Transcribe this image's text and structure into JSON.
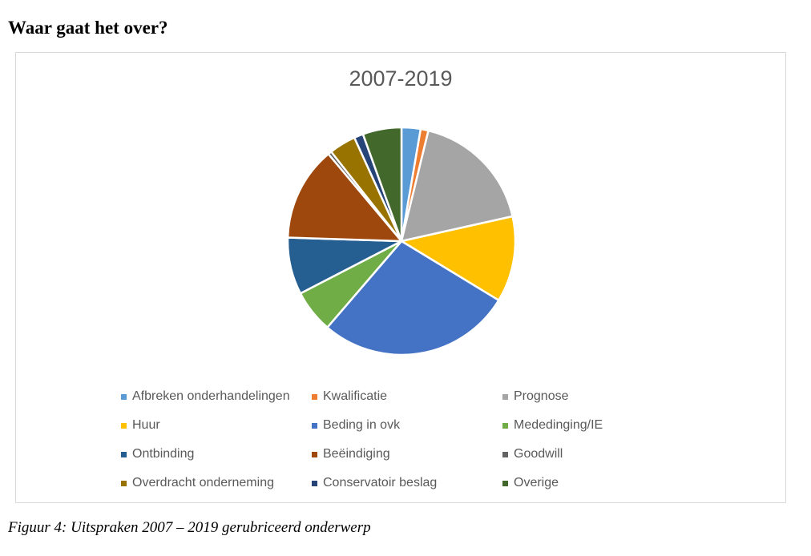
{
  "heading": "Waar gaat het over?",
  "caption": "Figuur 4: Uitspraken 2007 – 2019 gerubriceerd onderwerp",
  "chart_data": {
    "type": "pie",
    "title": "2007-2019",
    "legend_position": "bottom",
    "slices": [
      {
        "label": "Afbreken onderhandelingen",
        "value": 2.7,
        "color": "#5b9bd5"
      },
      {
        "label": "Kwalificatie",
        "value": 1.1,
        "color": "#ed7d31"
      },
      {
        "label": "Prognose",
        "value": 17.7,
        "color": "#a5a5a5"
      },
      {
        "label": "Huur",
        "value": 12.2,
        "color": "#ffc000"
      },
      {
        "label": "Beding in ovk",
        "value": 27.6,
        "color": "#4472c4"
      },
      {
        "label": "Mededinging/IE",
        "value": 6.1,
        "color": "#70ad47"
      },
      {
        "label": "Ontbinding",
        "value": 8.1,
        "color": "#255e91"
      },
      {
        "label": "Beëindiging",
        "value": 13.4,
        "color": "#9e480e"
      },
      {
        "label": "Goodwill",
        "value": 0.5,
        "color": "#636363"
      },
      {
        "label": "Overdracht onderneming",
        "value": 3.8,
        "color": "#997300"
      },
      {
        "label": "Conservatoir beslag",
        "value": 1.3,
        "color": "#264478"
      },
      {
        "label": "Overige",
        "value": 5.5,
        "color": "#43682b"
      }
    ]
  }
}
